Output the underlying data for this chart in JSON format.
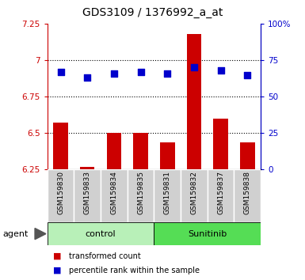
{
  "title": "GDS3109 / 1376992_a_at",
  "samples": [
    "GSM159830",
    "GSM159833",
    "GSM159834",
    "GSM159835",
    "GSM159831",
    "GSM159832",
    "GSM159837",
    "GSM159838"
  ],
  "red_values": [
    6.57,
    6.265,
    6.5,
    6.5,
    6.435,
    7.18,
    6.6,
    6.435
  ],
  "blue_values": [
    67,
    63,
    66,
    67,
    66,
    70,
    68,
    65
  ],
  "groups": [
    "control",
    "control",
    "control",
    "control",
    "Sunitinib",
    "Sunitinib",
    "Sunitinib",
    "Sunitinib"
  ],
  "group_colors_light": "#b8f0b8",
  "group_colors_dark": "#55dd55",
  "ylim_left": [
    6.25,
    7.25
  ],
  "ylim_right": [
    0,
    100
  ],
  "yticks_left": [
    6.25,
    6.5,
    6.75,
    7.0,
    7.25
  ],
  "yticks_right": [
    0,
    25,
    50,
    75,
    100
  ],
  "ytick_labels_left": [
    "6.25",
    "6.5",
    "6.75",
    "7",
    "7.25"
  ],
  "ytick_labels_right": [
    "0",
    "25",
    "50",
    "75",
    "100%"
  ],
  "hlines": [
    6.5,
    6.75,
    7.0
  ],
  "bar_color": "#cc0000",
  "dot_color": "#0000cc",
  "bar_width": 0.55,
  "dot_size": 40,
  "legend_red": "transformed count",
  "legend_blue": "percentile rank within the sample",
  "agent_label": "agent",
  "left_axis_color": "#cc0000",
  "right_axis_color": "#0000cc",
  "col_bg": "#d0d0d0",
  "col_border": "#ffffff"
}
